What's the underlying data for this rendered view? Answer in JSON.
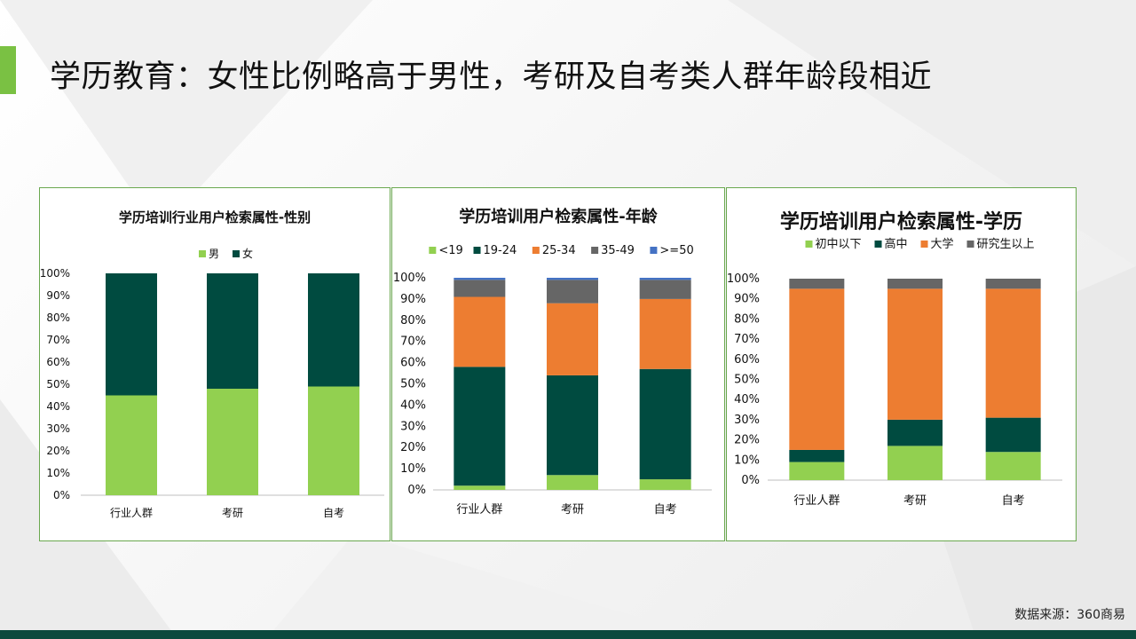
{
  "page_title": "学历教育：女性比例略高于男性，考研及自考类人群年龄段相近",
  "source_text": "数据来源：360商易",
  "colors": {
    "accent": "#7ac143",
    "footer": "#0c4a3e",
    "panel_border": "#6aa84f",
    "light_green": "#92d050",
    "dark_green": "#004b40",
    "orange": "#ed7d31",
    "gray": "#666666",
    "blue": "#4472c4"
  },
  "chart_data": [
    {
      "type": "bar",
      "stacked": true,
      "title": "学历培训行业用户检索属性-性别",
      "categories": [
        "行业人群",
        "考研",
        "自考"
      ],
      "series": [
        {
          "name": "男",
          "color": "#92d050",
          "values": [
            45,
            48,
            49
          ]
        },
        {
          "name": "女",
          "color": "#004b40",
          "values": [
            55,
            52,
            51
          ]
        }
      ],
      "ylim": [
        0,
        100
      ],
      "yticks": [
        "0%",
        "10%",
        "20%",
        "30%",
        "40%",
        "50%",
        "60%",
        "70%",
        "80%",
        "90%",
        "100%"
      ],
      "legend": "top",
      "grid": false
    },
    {
      "type": "bar",
      "stacked": true,
      "title": "学历培训用户检索属性-年龄",
      "categories": [
        "行业人群",
        "考研",
        "自考"
      ],
      "series": [
        {
          "name": "<19",
          "color": "#92d050",
          "values": [
            2,
            7,
            5
          ]
        },
        {
          "name": "19-24",
          "color": "#004b40",
          "values": [
            56,
            47,
            52
          ]
        },
        {
          "name": "25-34",
          "color": "#ed7d31",
          "values": [
            33,
            34,
            33
          ]
        },
        {
          "name": "35-49",
          "color": "#666666",
          "values": [
            8,
            11,
            9
          ]
        },
        {
          "name": ">=50",
          "color": "#4472c4",
          "values": [
            1,
            1,
            1
          ]
        }
      ],
      "ylim": [
        0,
        100
      ],
      "yticks": [
        "0%",
        "10%",
        "20%",
        "30%",
        "40%",
        "50%",
        "60%",
        "70%",
        "80%",
        "90%",
        "100%"
      ],
      "legend": "top",
      "grid": false
    },
    {
      "type": "bar",
      "stacked": true,
      "title": "学历培训用户检索属性-学历",
      "categories": [
        "行业人群",
        "考研",
        "自考"
      ],
      "series": [
        {
          "name": "初中以下",
          "color": "#92d050",
          "values": [
            9,
            17,
            14
          ]
        },
        {
          "name": "高中",
          "color": "#004b40",
          "values": [
            6,
            13,
            17
          ]
        },
        {
          "name": "大学",
          "color": "#ed7d31",
          "values": [
            80,
            65,
            64
          ]
        },
        {
          "name": "研究生以上",
          "color": "#666666",
          "values": [
            5,
            5,
            5
          ]
        }
      ],
      "ylim": [
        0,
        100
      ],
      "yticks": [
        "0%",
        "10%",
        "20%",
        "30%",
        "40%",
        "50%",
        "60%",
        "70%",
        "80%",
        "90%",
        "100%"
      ],
      "legend": "top",
      "grid": false
    }
  ]
}
